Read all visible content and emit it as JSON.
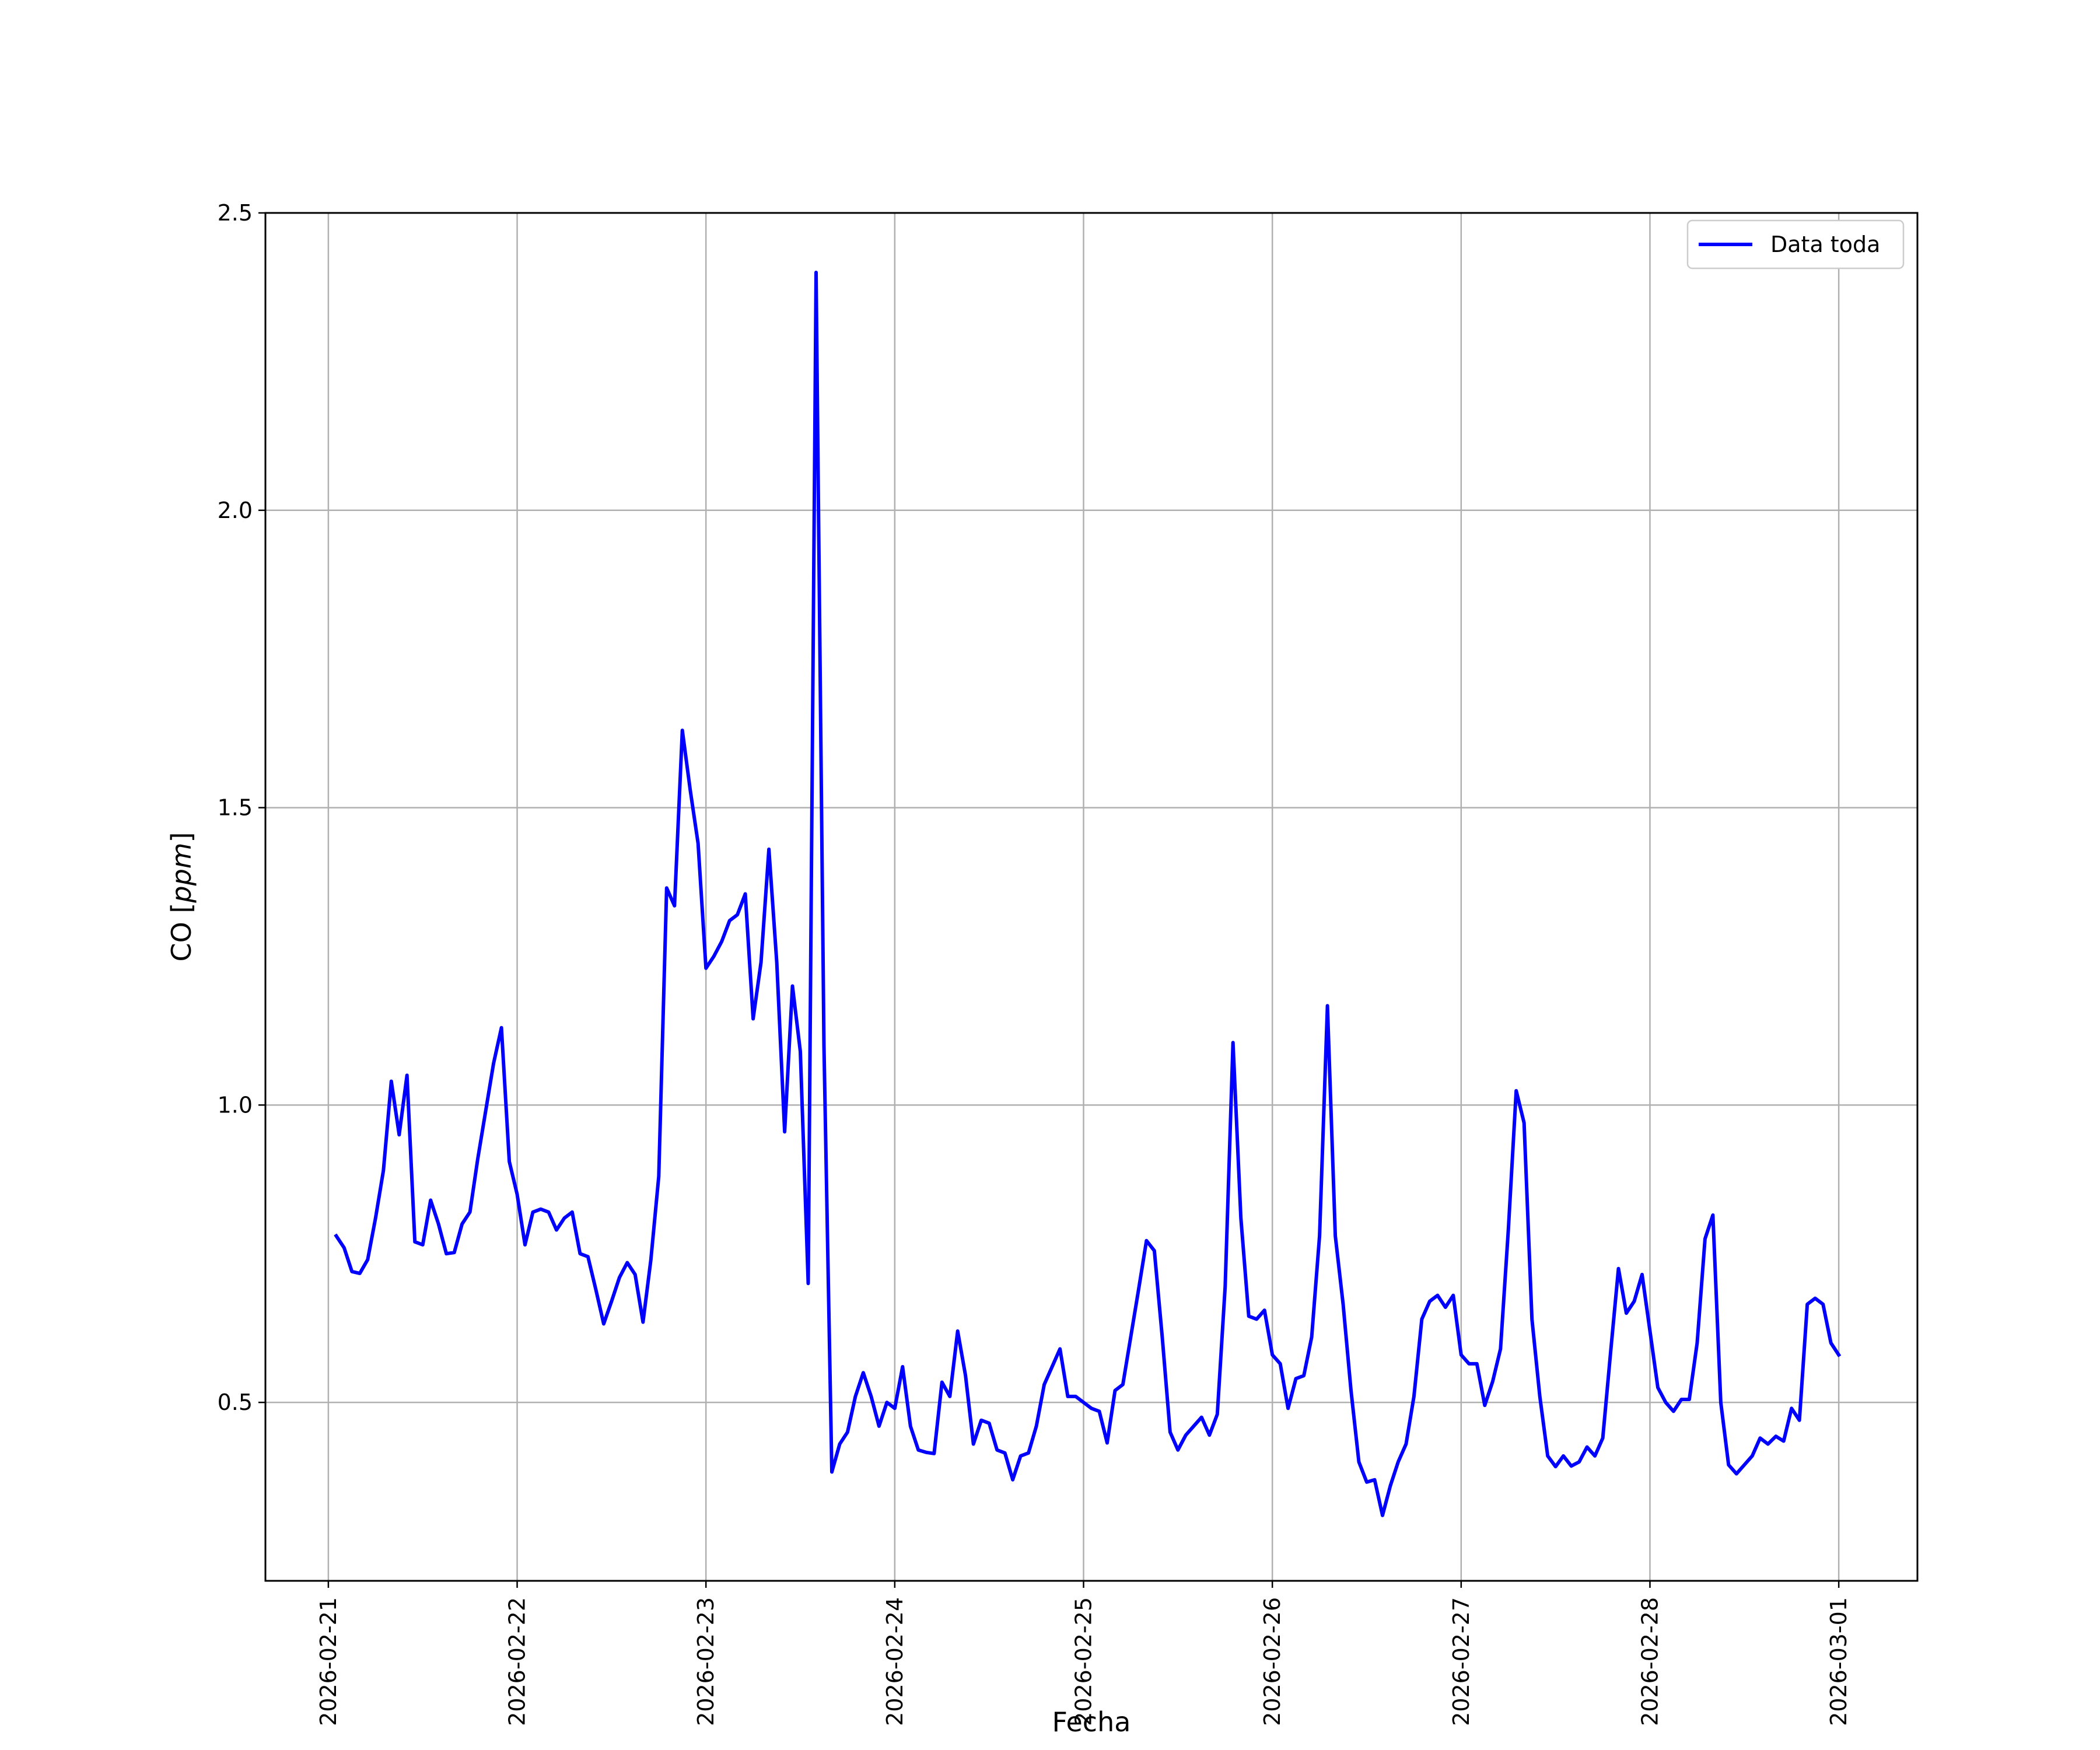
{
  "chart_data": {
    "type": "line",
    "xlabel": "Fecha",
    "ylabel_prefix": "CO [",
    "ylabel_unit": "ppm",
    "ylabel_suffix": "]",
    "xlim": [
      "2026-02-20T16:00",
      "2026-03-01T10:00"
    ],
    "ylim": [
      0.2,
      2.5
    ],
    "x_ticks": [
      "2026-02-21",
      "2026-02-22",
      "2026-02-23",
      "2026-02-24",
      "2026-02-25",
      "2026-02-26",
      "2026-02-27",
      "2026-02-28",
      "2026-03-01"
    ],
    "y_ticks": [
      0.5,
      1.0,
      1.5,
      2.0,
      2.5
    ],
    "y_tick_labels": [
      "0.5",
      "1.0",
      "1.5",
      "2.0",
      "2.5"
    ],
    "grid": true,
    "legend_position": "top-right",
    "series": [
      {
        "name": "Data toda",
        "color": "#0000ff",
        "x": [
          "2026-02-21T01:00",
          "2026-02-21T02:00",
          "2026-02-21T03:00",
          "2026-02-21T04:00",
          "2026-02-21T05:00",
          "2026-02-21T06:00",
          "2026-02-21T07:00",
          "2026-02-21T08:00",
          "2026-02-21T09:00",
          "2026-02-21T10:00",
          "2026-02-21T11:00",
          "2026-02-21T12:00",
          "2026-02-21T13:00",
          "2026-02-21T14:00",
          "2026-02-21T15:00",
          "2026-02-21T16:00",
          "2026-02-21T17:00",
          "2026-02-21T18:00",
          "2026-02-21T19:00",
          "2026-02-21T20:00",
          "2026-02-21T21:00",
          "2026-02-21T22:00",
          "2026-02-21T23:00",
          "2026-02-22T00:00",
          "2026-02-22T01:00",
          "2026-02-22T02:00",
          "2026-02-22T03:00",
          "2026-02-22T04:00",
          "2026-02-22T05:00",
          "2026-02-22T06:00",
          "2026-02-22T07:00",
          "2026-02-22T08:00",
          "2026-02-22T09:00",
          "2026-02-22T10:00",
          "2026-02-22T11:00",
          "2026-02-22T12:00",
          "2026-02-22T13:00",
          "2026-02-22T14:00",
          "2026-02-22T15:00",
          "2026-02-22T16:00",
          "2026-02-22T17:00",
          "2026-02-22T18:00",
          "2026-02-22T19:00",
          "2026-02-22T20:00",
          "2026-02-22T21:00",
          "2026-02-22T22:00",
          "2026-02-22T23:00",
          "2026-02-23T00:00",
          "2026-02-23T01:00",
          "2026-02-23T02:00",
          "2026-02-23T03:00",
          "2026-02-23T04:00",
          "2026-02-23T05:00",
          "2026-02-23T06:00",
          "2026-02-23T07:00",
          "2026-02-23T08:00",
          "2026-02-23T09:00",
          "2026-02-23T10:00",
          "2026-02-23T11:00",
          "2026-02-23T12:00",
          "2026-02-23T13:00",
          "2026-02-23T14:00",
          "2026-02-23T15:00",
          "2026-02-23T16:00",
          "2026-02-23T17:00",
          "2026-02-23T18:00",
          "2026-02-23T19:00",
          "2026-02-23T20:00",
          "2026-02-23T21:00",
          "2026-02-23T22:00",
          "2026-02-23T23:00",
          "2026-02-24T00:00",
          "2026-02-24T01:00",
          "2026-02-24T02:00",
          "2026-02-24T03:00",
          "2026-02-24T04:00",
          "2026-02-24T05:00",
          "2026-02-24T06:00",
          "2026-02-24T07:00",
          "2026-02-24T08:00",
          "2026-02-24T09:00",
          "2026-02-24T10:00",
          "2026-02-24T11:00",
          "2026-02-24T12:00",
          "2026-02-24T13:00",
          "2026-02-24T14:00",
          "2026-02-24T15:00",
          "2026-02-24T16:00",
          "2026-02-24T17:00",
          "2026-02-24T18:00",
          "2026-02-24T19:00",
          "2026-02-24T20:00",
          "2026-02-24T21:00",
          "2026-02-24T22:00",
          "2026-02-24T23:00",
          "2026-02-25T00:00",
          "2026-02-25T01:00",
          "2026-02-25T02:00",
          "2026-02-25T03:00",
          "2026-02-25T04:00",
          "2026-02-25T05:00",
          "2026-02-25T06:00",
          "2026-02-25T07:00",
          "2026-02-25T08:00",
          "2026-02-25T09:00",
          "2026-02-25T10:00",
          "2026-02-25T11:00",
          "2026-02-25T12:00",
          "2026-02-25T13:00",
          "2026-02-25T14:00",
          "2026-02-25T15:00",
          "2026-02-25T16:00",
          "2026-02-25T17:00",
          "2026-02-25T18:00",
          "2026-02-25T19:00",
          "2026-02-25T20:00",
          "2026-02-25T21:00",
          "2026-02-25T22:00",
          "2026-02-25T23:00",
          "2026-02-26T00:00",
          "2026-02-26T01:00",
          "2026-02-26T02:00",
          "2026-02-26T03:00",
          "2026-02-26T04:00",
          "2026-02-26T05:00",
          "2026-02-26T06:00",
          "2026-02-26T07:00",
          "2026-02-26T08:00",
          "2026-02-26T09:00",
          "2026-02-26T10:00",
          "2026-02-26T11:00",
          "2026-02-26T12:00",
          "2026-02-26T13:00",
          "2026-02-26T14:00",
          "2026-02-26T15:00",
          "2026-02-26T16:00",
          "2026-02-26T17:00",
          "2026-02-26T18:00",
          "2026-02-26T19:00",
          "2026-02-26T20:00",
          "2026-02-26T21:00",
          "2026-02-26T22:00",
          "2026-02-26T23:00",
          "2026-02-27T00:00",
          "2026-02-27T01:00",
          "2026-02-27T02:00",
          "2026-02-27T03:00",
          "2026-02-27T04:00",
          "2026-02-27T05:00",
          "2026-02-27T06:00",
          "2026-02-27T07:00",
          "2026-02-27T08:00",
          "2026-02-27T09:00",
          "2026-02-27T10:00",
          "2026-02-27T11:00",
          "2026-02-27T12:00",
          "2026-02-27T13:00",
          "2026-02-27T14:00",
          "2026-02-27T15:00",
          "2026-02-27T16:00",
          "2026-02-27T17:00",
          "2026-02-27T18:00",
          "2026-02-27T19:00",
          "2026-02-27T20:00",
          "2026-02-27T21:00",
          "2026-02-27T22:00",
          "2026-02-27T23:00",
          "2026-02-28T00:00",
          "2026-02-28T01:00",
          "2026-02-28T02:00",
          "2026-02-28T03:00",
          "2026-02-28T04:00",
          "2026-02-28T05:00",
          "2026-02-28T06:00",
          "2026-02-28T07:00",
          "2026-02-28T08:00",
          "2026-02-28T09:00",
          "2026-02-28T10:00",
          "2026-02-28T11:00",
          "2026-02-28T12:00",
          "2026-02-28T13:00",
          "2026-02-28T14:00",
          "2026-02-28T15:00",
          "2026-02-28T16:00",
          "2026-02-28T17:00",
          "2026-02-28T18:00",
          "2026-02-28T19:00",
          "2026-02-28T20:00",
          "2026-02-28T21:00",
          "2026-02-28T22:00",
          "2026-02-28T23:00",
          "2026-03-01T00:00"
        ],
        "y": [
          0.78,
          0.76,
          0.72,
          0.717,
          0.74,
          0.81,
          0.89,
          1.04,
          0.95,
          1.05,
          0.77,
          0.765,
          0.84,
          0.8,
          0.75,
          0.752,
          0.8,
          0.82,
          0.91,
          0.99,
          1.07,
          1.13,
          0.905,
          0.85,
          0.765,
          0.82,
          0.825,
          0.82,
          0.79,
          0.81,
          0.82,
          0.75,
          0.745,
          0.69,
          0.632,
          0.67,
          0.71,
          0.735,
          0.715,
          0.635,
          0.74,
          0.88,
          1.365,
          1.335,
          1.63,
          1.53,
          1.44,
          1.23,
          1.25,
          1.275,
          1.31,
          1.32,
          1.355,
          1.145,
          1.24,
          1.43,
          1.24,
          0.955,
          1.2,
          1.09,
          0.7,
          2.4,
          1.1,
          0.383,
          0.43,
          0.45,
          0.51,
          0.55,
          0.51,
          0.46,
          0.5,
          0.49,
          0.56,
          0.46,
          0.42,
          0.416,
          0.414,
          0.534,
          0.51,
          0.62,
          0.545,
          0.43,
          0.47,
          0.465,
          0.42,
          0.415,
          0.37,
          0.41,
          0.415,
          0.46,
          0.53,
          0.56,
          0.59,
          0.51,
          0.51,
          0.5,
          0.49,
          0.485,
          0.432,
          0.52,
          0.53,
          0.61,
          0.69,
          0.772,
          0.755,
          0.61,
          0.45,
          0.42,
          0.445,
          0.46,
          0.475,
          0.445,
          0.48,
          0.695,
          1.105,
          0.81,
          0.645,
          0.64,
          0.655,
          0.58,
          0.565,
          0.49,
          0.54,
          0.545,
          0.61,
          0.78,
          1.167,
          0.78,
          0.665,
          0.52,
          0.4,
          0.366,
          0.37,
          0.31,
          0.36,
          0.4,
          0.43,
          0.51,
          0.64,
          0.67,
          0.68,
          0.66,
          0.68,
          0.58,
          0.565,
          0.565,
          0.495,
          0.535,
          0.59,
          0.79,
          1.024,
          0.97,
          0.64,
          0.51,
          0.41,
          0.392,
          0.41,
          0.393,
          0.4,
          0.425,
          0.41,
          0.44,
          0.585,
          0.725,
          0.65,
          0.67,
          0.715,
          0.62,
          0.525,
          0.5,
          0.485,
          0.505,
          0.505,
          0.6,
          0.775,
          0.815,
          0.5,
          0.395,
          0.38,
          0.395,
          0.41,
          0.44,
          0.43,
          0.443,
          0.435,
          0.49,
          0.47,
          0.665,
          0.675,
          0.665,
          0.6,
          0.58
        ]
      }
    ]
  }
}
